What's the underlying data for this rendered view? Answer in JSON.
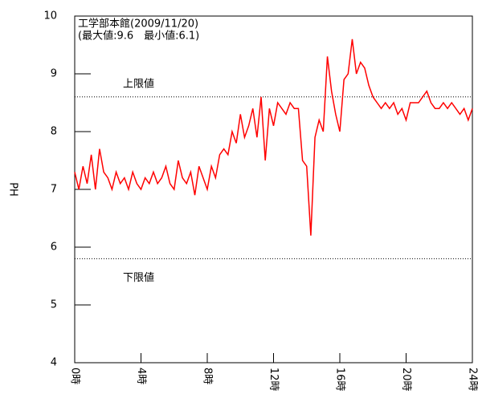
{
  "chart_data": {
    "type": "line",
    "title": "工学部本館(2009/11/20)",
    "subtitle": "(最大値:9.6　最小値:6.1)",
    "ylabel": "PH",
    "x": [
      0,
      0.25,
      0.5,
      0.75,
      1,
      1.25,
      1.5,
      1.75,
      2,
      2.25,
      2.5,
      2.75,
      3,
      3.25,
      3.5,
      3.75,
      4,
      4.25,
      4.5,
      4.75,
      5,
      5.25,
      5.5,
      5.75,
      6,
      6.25,
      6.5,
      6.75,
      7,
      7.25,
      7.5,
      7.75,
      8,
      8.25,
      8.5,
      8.75,
      9,
      9.25,
      9.5,
      9.75,
      10,
      10.25,
      10.5,
      10.75,
      11,
      11.25,
      11.5,
      11.75,
      12,
      12.25,
      12.5,
      12.75,
      13,
      13.25,
      13.5,
      13.75,
      14,
      14.25,
      14.5,
      14.75,
      15,
      15.25,
      15.5,
      15.75,
      16,
      16.25,
      16.5,
      16.75,
      17,
      17.25,
      17.5,
      17.75,
      18,
      18.25,
      18.5,
      18.75,
      19,
      19.25,
      19.5,
      19.75,
      20,
      20.25,
      20.5,
      20.75,
      21,
      21.25,
      21.5,
      21.75,
      22,
      22.25,
      22.5,
      22.75,
      23,
      23.25,
      23.5,
      23.75,
      24
    ],
    "series": [
      {
        "color": "#ff0000",
        "values": [
          7.3,
          7.0,
          7.4,
          7.1,
          7.6,
          7.0,
          7.7,
          7.3,
          7.2,
          7.0,
          7.3,
          7.1,
          7.2,
          7.0,
          7.3,
          7.1,
          7.0,
          7.2,
          7.1,
          7.3,
          7.1,
          7.2,
          7.4,
          7.1,
          7.0,
          7.5,
          7.2,
          7.1,
          7.3,
          6.9,
          7.4,
          7.2,
          7.0,
          7.4,
          7.2,
          7.6,
          7.7,
          7.6,
          8.0,
          7.8,
          8.3,
          7.9,
          8.1,
          8.4,
          7.9,
          8.6,
          7.5,
          8.4,
          8.1,
          8.5,
          8.4,
          8.3,
          8.5,
          8.4,
          8.4,
          7.5,
          7.4,
          6.2,
          7.9,
          8.2,
          8.0,
          9.3,
          8.7,
          8.3,
          8.0,
          8.9,
          9.0,
          9.6,
          9.0,
          9.2,
          9.1,
          8.8,
          8.6,
          8.5,
          8.4,
          8.5,
          8.4,
          8.5,
          8.3,
          8.4,
          8.2,
          8.5,
          8.5,
          8.5,
          8.6,
          8.7,
          8.5,
          8.4,
          8.4,
          8.5,
          8.4,
          8.5,
          8.4,
          8.3,
          8.4,
          8.2,
          8.4
        ]
      }
    ],
    "xlim": [
      0,
      24
    ],
    "xticks": [
      {
        "value": 0,
        "label": "0時"
      },
      {
        "value": 4,
        "label": "4時"
      },
      {
        "value": 8,
        "label": "8時"
      },
      {
        "value": 12,
        "label": "12時"
      },
      {
        "value": 16,
        "label": "16時"
      },
      {
        "value": 20,
        "label": "20時"
      },
      {
        "value": 24,
        "label": "24時"
      }
    ],
    "ylim": [
      4,
      10
    ],
    "yticks": [
      4,
      5,
      6,
      7,
      8,
      9,
      10
    ],
    "limits": [
      {
        "label": "上限値",
        "value": 8.6
      },
      {
        "label": "下限値",
        "value": 5.8
      }
    ]
  }
}
